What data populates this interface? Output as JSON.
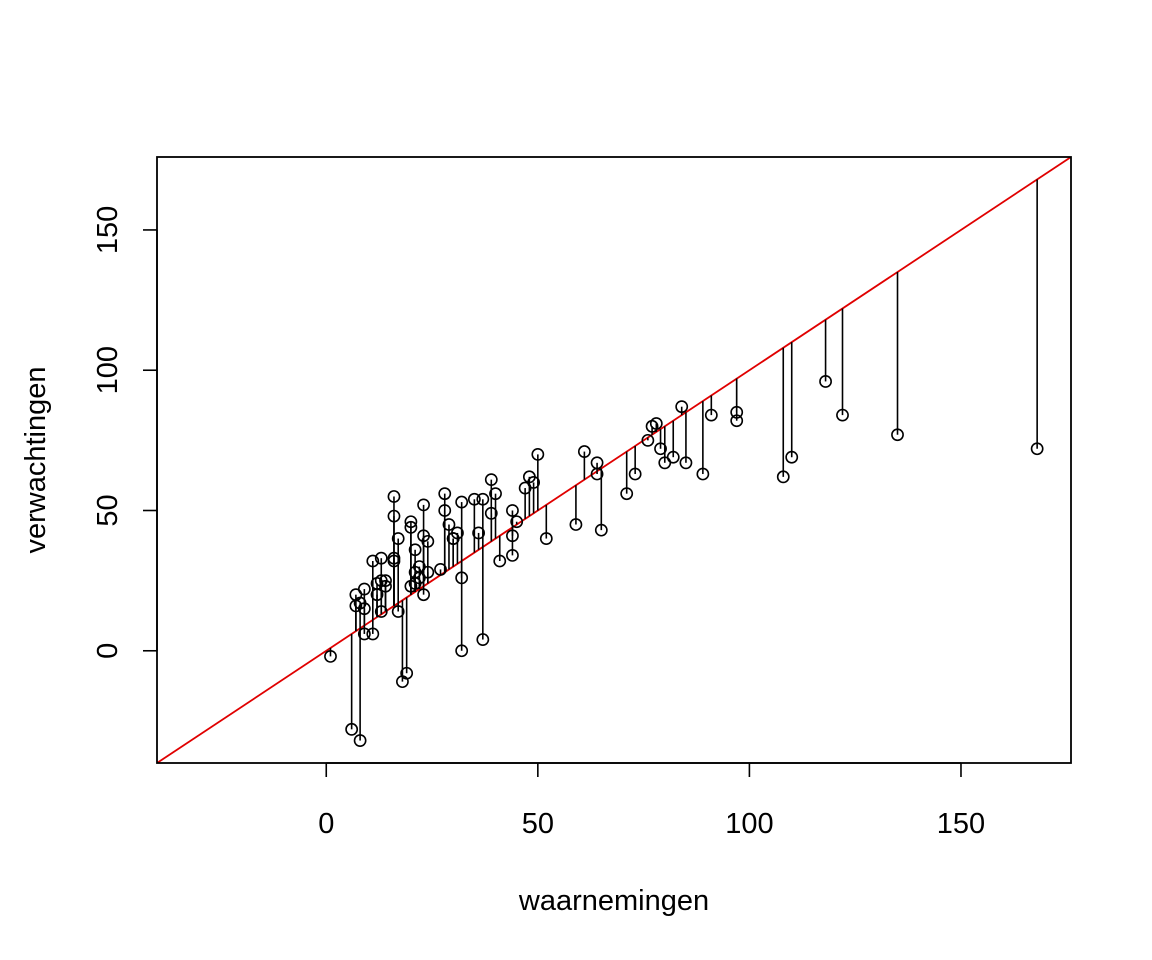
{
  "chart_data": {
    "type": "scatter",
    "title": "",
    "xlabel": "waarnemingen",
    "ylabel": "verwachtingen",
    "xlim": [
      -40,
      176
    ],
    "ylim": [
      -40,
      176
    ],
    "xticks": [
      0,
      50,
      100,
      150
    ],
    "yticks": [
      0,
      50,
      100,
      150
    ],
    "xtick_labels": [
      "0",
      "50",
      "100",
      "150"
    ],
    "ytick_labels": [
      "0",
      "50",
      "100",
      "150"
    ],
    "grid": false,
    "reference_line": {
      "type": "identity",
      "slope": 1,
      "intercept": 0,
      "color": "#e00000"
    },
    "segment_color": "#000000",
    "point_style": "open-circle",
    "points": [
      [
        1,
        -2
      ],
      [
        6,
        -28
      ],
      [
        7,
        20
      ],
      [
        7,
        16
      ],
      [
        8,
        -32
      ],
      [
        8,
        17
      ],
      [
        9,
        6
      ],
      [
        9,
        15
      ],
      [
        9,
        22
      ],
      [
        11,
        32
      ],
      [
        11,
        6
      ],
      [
        12,
        24
      ],
      [
        12,
        20
      ],
      [
        13,
        33
      ],
      [
        13,
        25
      ],
      [
        13,
        14
      ],
      [
        14,
        25
      ],
      [
        14,
        23
      ],
      [
        16,
        55
      ],
      [
        16,
        48
      ],
      [
        16,
        33
      ],
      [
        16,
        32
      ],
      [
        17,
        40
      ],
      [
        17,
        14
      ],
      [
        18,
        -11
      ],
      [
        19,
        -8
      ],
      [
        20,
        46
      ],
      [
        20,
        44
      ],
      [
        20,
        23
      ],
      [
        21,
        36
      ],
      [
        21,
        28
      ],
      [
        21,
        24
      ],
      [
        22,
        30
      ],
      [
        22,
        26
      ],
      [
        23,
        52
      ],
      [
        23,
        41
      ],
      [
        23,
        20
      ],
      [
        24,
        39
      ],
      [
        24,
        28
      ],
      [
        27,
        29
      ],
      [
        28,
        56
      ],
      [
        28,
        50
      ],
      [
        29,
        45
      ],
      [
        30,
        40
      ],
      [
        30,
        40
      ],
      [
        31,
        42
      ],
      [
        32,
        53
      ],
      [
        32,
        26
      ],
      [
        32,
        0
      ],
      [
        35,
        54
      ],
      [
        36,
        42
      ],
      [
        37,
        54
      ],
      [
        37,
        4
      ],
      [
        39,
        61
      ],
      [
        39,
        49
      ],
      [
        40,
        56
      ],
      [
        41,
        32
      ],
      [
        44,
        50
      ],
      [
        44,
        41
      ],
      [
        44,
        34
      ],
      [
        45,
        46
      ],
      [
        47,
        58
      ],
      [
        48,
        62
      ],
      [
        49,
        60
      ],
      [
        50,
        70
      ],
      [
        52,
        40
      ],
      [
        59,
        45
      ],
      [
        61,
        71
      ],
      [
        64,
        67
      ],
      [
        64,
        63
      ],
      [
        65,
        43
      ],
      [
        71,
        56
      ],
      [
        73,
        63
      ],
      [
        76,
        75
      ],
      [
        77,
        80
      ],
      [
        78,
        81
      ],
      [
        79,
        72
      ],
      [
        80,
        67
      ],
      [
        82,
        69
      ],
      [
        84,
        87
      ],
      [
        85,
        67
      ],
      [
        89,
        63
      ],
      [
        91,
        84
      ],
      [
        97,
        85
      ],
      [
        97,
        82
      ],
      [
        108,
        62
      ],
      [
        110,
        69
      ],
      [
        118,
        96
      ],
      [
        122,
        84
      ],
      [
        135,
        77
      ],
      [
        168,
        72
      ]
    ]
  }
}
